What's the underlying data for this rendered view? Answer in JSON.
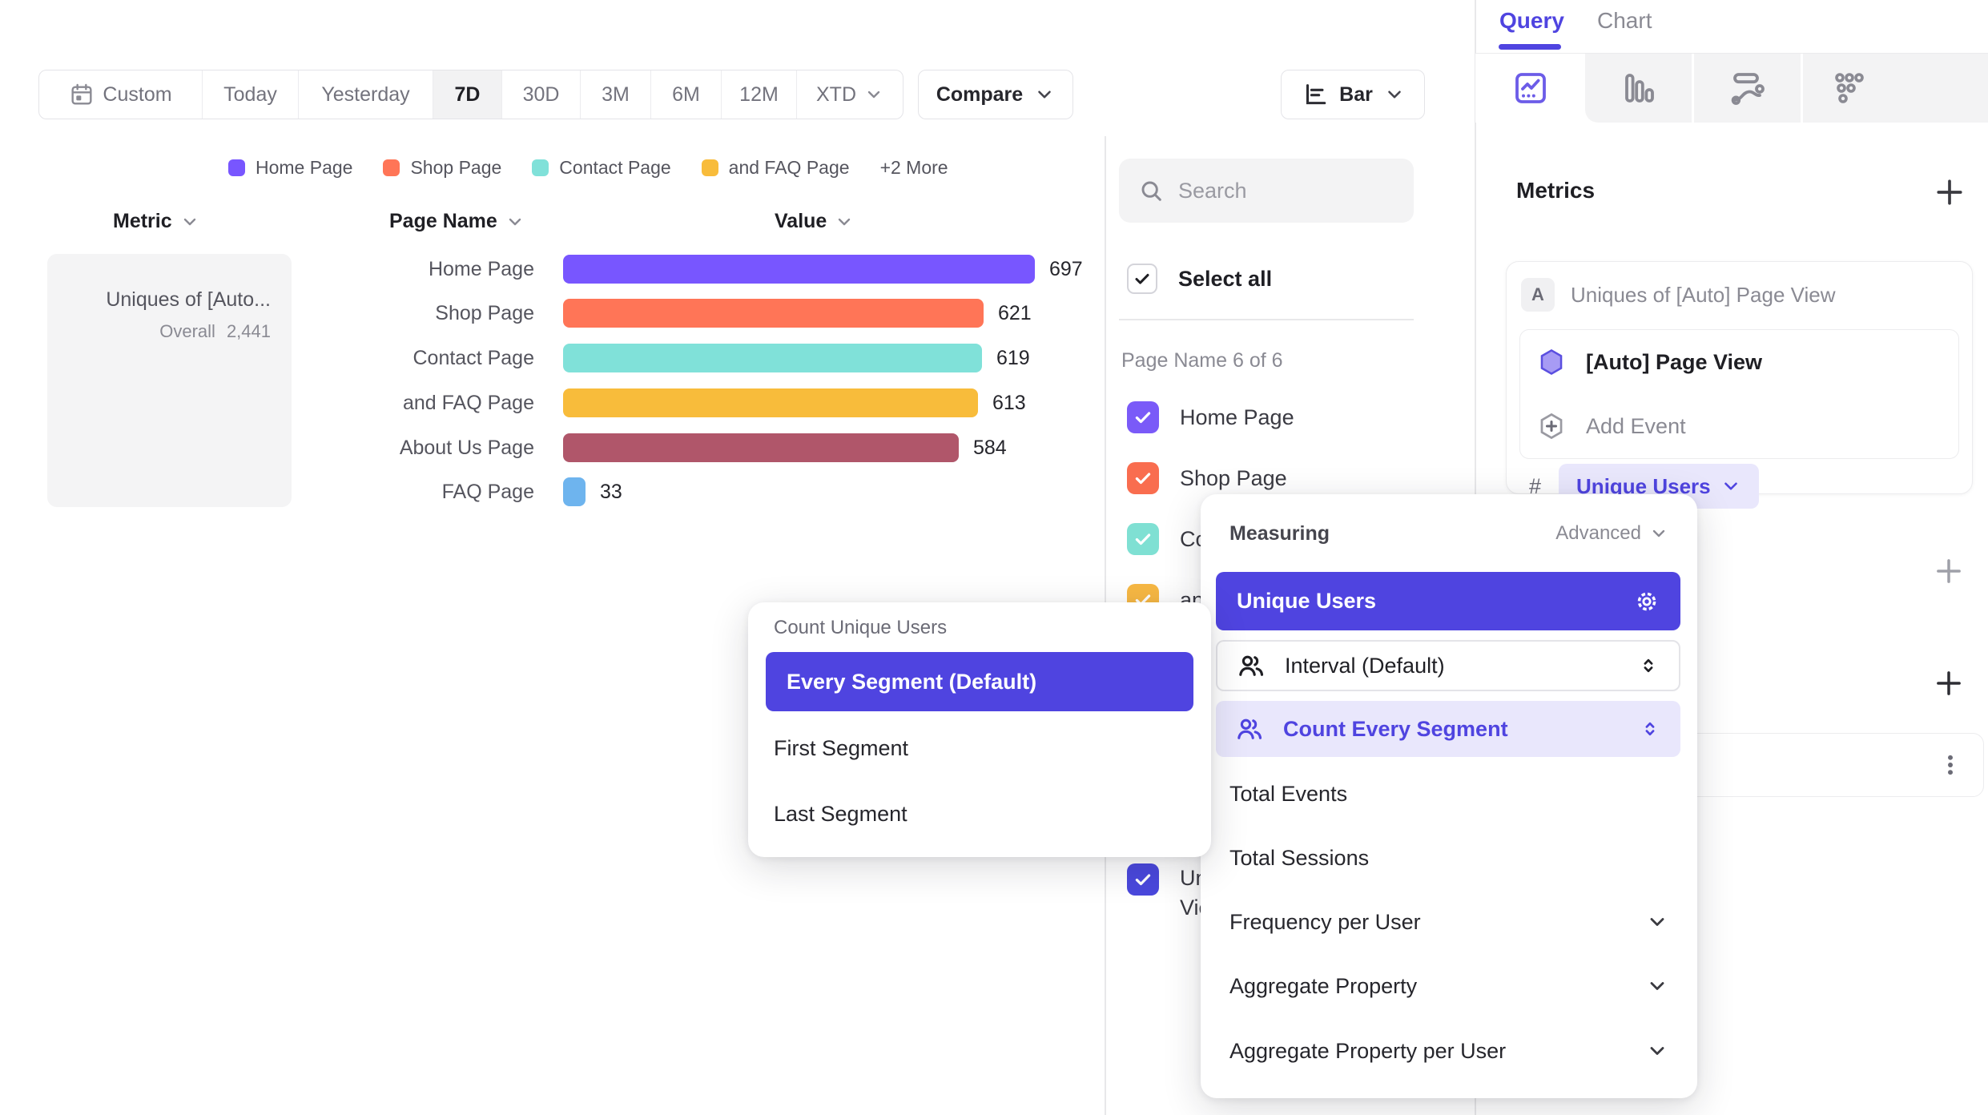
{
  "accent_color": "#4F44E0",
  "toolbar": {
    "ranges": [
      "Custom",
      "Today",
      "Yesterday",
      "7D",
      "30D",
      "3M",
      "6M",
      "12M",
      "XTD"
    ],
    "selected_range": "7D",
    "compare": "Compare",
    "chart_type": "Bar"
  },
  "legend": {
    "items": [
      {
        "label": "Home Page",
        "color": "#7856FF"
      },
      {
        "label": "Shop Page",
        "color": "#FF7557"
      },
      {
        "label": "Contact Page",
        "color": "#80E1D9"
      },
      {
        "label": "and FAQ Page",
        "color": "#F8BC3B"
      }
    ],
    "more": "+2 More"
  },
  "table": {
    "metric_header": "Metric",
    "page_header": "Page Name",
    "value_header": "Value",
    "metric_title": "Uniques of [Auto...",
    "overall_label": "Overall",
    "overall_value": "2,441"
  },
  "chart_data": {
    "type": "bar",
    "orientation": "horizontal",
    "series_name": "Uniques of [Auto] Page View",
    "categories": [
      "Home Page",
      "Shop Page",
      "Contact Page",
      "and FAQ Page",
      "About Us Page",
      "FAQ Page"
    ],
    "values": [
      697,
      621,
      619,
      613,
      584,
      33
    ],
    "colors": [
      "#7856FF",
      "#FF7557",
      "#80E1D9",
      "#F8BC3B",
      "#B0566A",
      "#6EB4EE"
    ],
    "overall_total": 2441,
    "xlim": [
      0,
      697
    ],
    "grid": false,
    "legend_position": "top",
    "value_labels": true
  },
  "filter_panel": {
    "search_placeholder": "Search",
    "select_all": "Select all",
    "group_label": "Page Name 6 of 6",
    "items": [
      {
        "label": "Home Page",
        "color": "#7A5AF8",
        "checked": true
      },
      {
        "label": "Shop Page",
        "color": "#F96D4F",
        "checked": true
      },
      {
        "label": "Contact Page",
        "color": "#7FE0D3",
        "checked": true
      },
      {
        "label": "and FAQ Page",
        "color": "#F7B844",
        "checked": true
      },
      {
        "label": "About Us Page",
        "color": "#B0566A",
        "checked": true
      },
      {
        "label": "FAQ Page",
        "color": "#6EB4EE",
        "checked": true
      }
    ],
    "metric_item_line1": "Uni",
    "metric_item_line2": "Vie",
    "metric_item_color": "#4A48DD",
    "metric_item_checked": true
  },
  "count_popup": {
    "title": "Count Unique Users",
    "selected": "Every Segment (Default)",
    "options": [
      "First Segment",
      "Last Segment"
    ]
  },
  "measuring_popup": {
    "title": "Measuring",
    "advanced": "Advanced",
    "selected": "Unique Users",
    "interval": "Interval (Default)",
    "count_mode": "Count Every Segment",
    "options": [
      "Total Events",
      "Total Sessions",
      "Frequency per User",
      "Aggregate Property",
      "Aggregate Property per User"
    ]
  },
  "query_panel": {
    "tabs": [
      "Query",
      "Chart"
    ],
    "active_tab": "Query",
    "metrics_heading": "Metrics",
    "metric_letter": "A",
    "metric_title": "Uniques of [Auto] Page View",
    "event_name": "[Auto] Page View",
    "add_event": "Add Event",
    "hash": "#",
    "measurement": "Unique Users"
  }
}
